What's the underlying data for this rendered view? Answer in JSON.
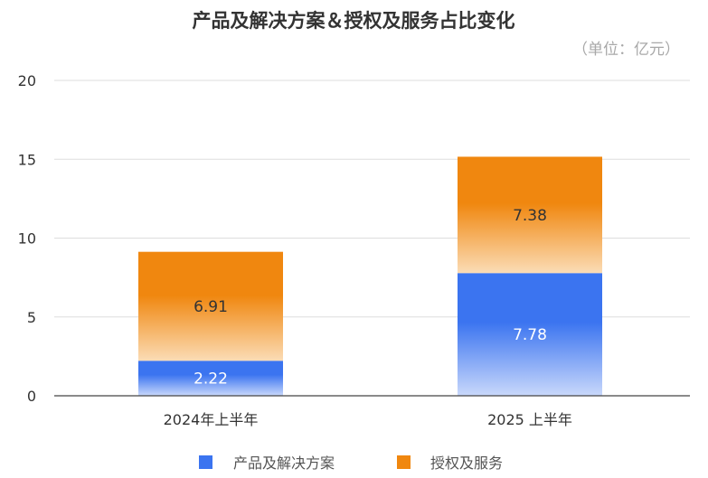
{
  "chart_data": {
    "type": "bar",
    "stacked": true,
    "title": "产品及解决方案＆授权及服务占比变化",
    "unit": "（单位：亿元）",
    "categories": [
      "2024年上半年",
      "2025 上半年"
    ],
    "series": [
      {
        "name": "产品及解决方案",
        "values": [
          2.22,
          7.78
        ],
        "labels": [
          "2.22",
          "7.78"
        ],
        "color": "#3b74f0",
        "color_light": "#c9d8fb"
      },
      {
        "name": "授权及服务",
        "values": [
          6.91,
          7.38
        ],
        "labels": [
          "6.91",
          "7.38"
        ],
        "color": "#f0870f",
        "color_light": "#fbdcb6"
      }
    ],
    "ylim": [
      0,
      20
    ],
    "yticks": [
      "0",
      "5",
      "10",
      "15",
      "20"
    ],
    "grid": true,
    "legend": "bottom"
  }
}
